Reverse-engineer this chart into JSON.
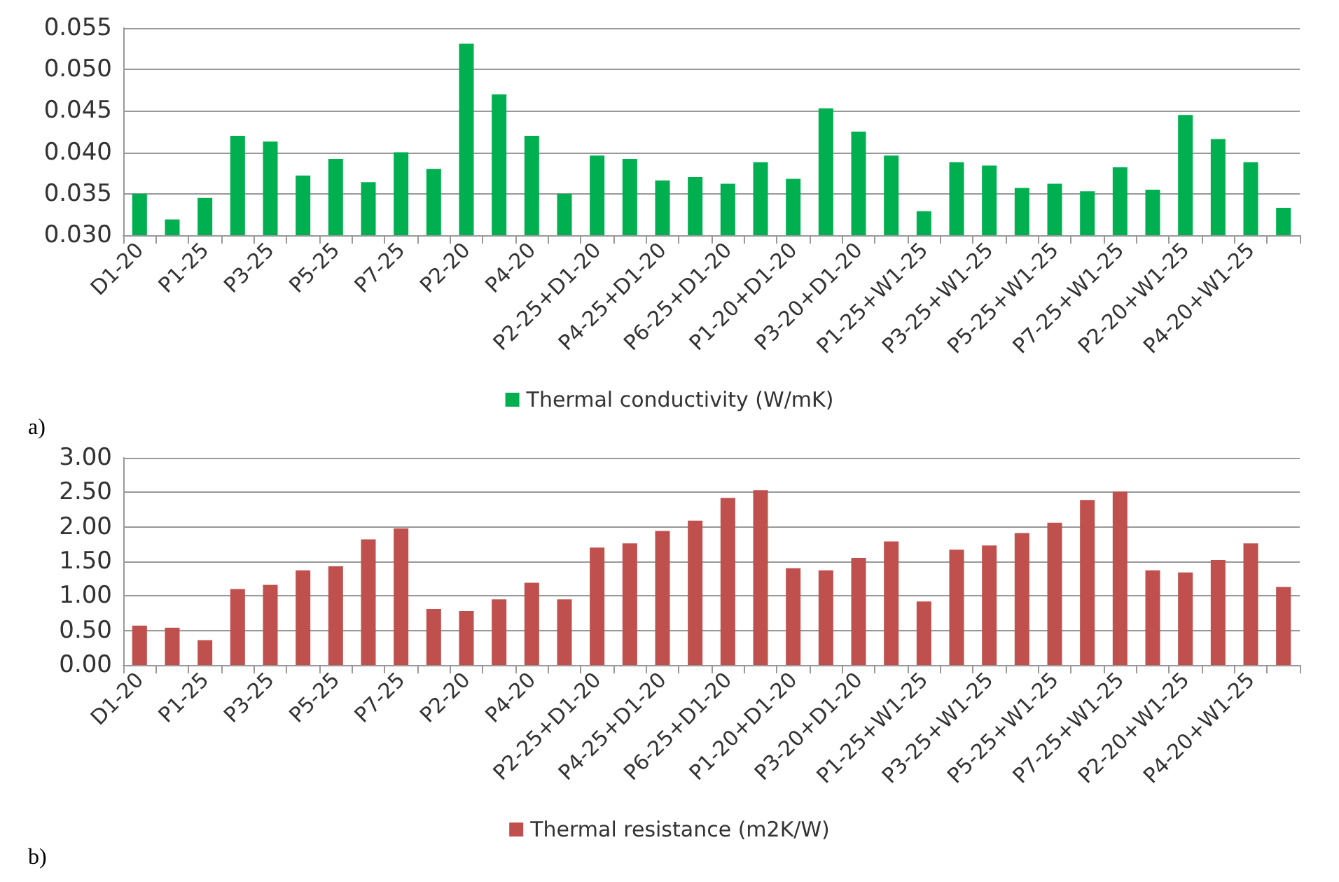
{
  "chart_data": [
    {
      "type": "bar",
      "categories": [
        "D1-20",
        null,
        "P1-25",
        null,
        "P3-25",
        null,
        "P5-25",
        null,
        "P7-25",
        null,
        "P2-20",
        null,
        "P4-20",
        null,
        "P2-25+D1-20",
        null,
        "P4-25+D1-20",
        null,
        "P6-25+D1-20",
        null,
        "P1-20+D1-20",
        null,
        "P3-20+D1-20",
        null,
        "P1-25+W1-25",
        null,
        "P3-25+W1-25",
        null,
        "P5-25+W1-25",
        null,
        "P7-25+W1-25",
        null,
        "P2-20+W1-25",
        null,
        "P4-20+W1-25",
        null
      ],
      "series": [
        {
          "name": "Thermal conductivity (W/mK)",
          "color": "#00b050",
          "values": [
            0.035,
            0.0319,
            0.0345,
            0.042,
            0.0413,
            0.0372,
            0.0392,
            0.0364,
            0.04,
            0.038,
            0.0531,
            0.047,
            0.042,
            0.035,
            0.0396,
            0.0392,
            0.0366,
            0.037,
            0.0362,
            0.0388,
            0.0368,
            0.0453,
            0.0425,
            0.0396,
            0.0329,
            0.0388,
            0.0384,
            0.0357,
            0.0362,
            0.0353,
            0.0382,
            0.0355,
            0.0445,
            0.0416,
            0.0388,
            0.0333
          ]
        }
      ],
      "ylim": [
        0.03,
        0.055
      ],
      "yticks": [
        {
          "value": 0.03,
          "label": "0.030"
        },
        {
          "value": 0.035,
          "label": "0.035"
        },
        {
          "value": 0.04,
          "label": "0.040"
        },
        {
          "value": 0.045,
          "label": "0.045"
        },
        {
          "value": 0.05,
          "label": "0.050"
        },
        {
          "value": 0.055,
          "label": "0.055"
        }
      ],
      "grid": "y",
      "legend": "bottom",
      "annotations": [
        "a)"
      ]
    },
    {
      "type": "bar",
      "categories": [
        "D1-20",
        null,
        "P1-25",
        null,
        "P3-25",
        null,
        "P5-25",
        null,
        "P7-25",
        null,
        "P2-20",
        null,
        "P4-20",
        null,
        "P2-25+D1-20",
        null,
        "P4-25+D1-20",
        null,
        "P6-25+D1-20",
        null,
        "P1-20+D1-20",
        null,
        "P3-20+D1-20",
        null,
        "P1-25+W1-25",
        null,
        "P3-25+W1-25",
        null,
        "P5-25+W1-25",
        null,
        "P7-25+W1-25",
        null,
        "P2-20+W1-25",
        null,
        "P4-20+W1-25",
        null
      ],
      "series": [
        {
          "name": "Thermal resistance (m2K/W)",
          "color": "#c0504d",
          "values": [
            0.57,
            0.54,
            0.36,
            1.1,
            1.16,
            1.37,
            1.43,
            1.82,
            1.98,
            0.81,
            0.78,
            0.95,
            1.19,
            0.95,
            1.7,
            1.76,
            1.94,
            2.09,
            2.42,
            2.53,
            1.4,
            1.37,
            1.55,
            1.79,
            0.92,
            1.67,
            1.73,
            1.91,
            2.06,
            2.39,
            2.51,
            1.37,
            1.34,
            1.52,
            1.76,
            1.13
          ]
        }
      ],
      "ylim": [
        0,
        3
      ],
      "yticks": [
        {
          "value": 0,
          "label": "0.00"
        },
        {
          "value": 0.5,
          "label": "0.50"
        },
        {
          "value": 1,
          "label": "1.00"
        },
        {
          "value": 1.5,
          "label": "1.50"
        },
        {
          "value": 2,
          "label": "2.00"
        },
        {
          "value": 2.5,
          "label": "2.50"
        },
        {
          "value": 3,
          "label": "3.00"
        }
      ],
      "grid": "y",
      "legend": "bottom",
      "annotations": [
        "b)"
      ]
    }
  ]
}
